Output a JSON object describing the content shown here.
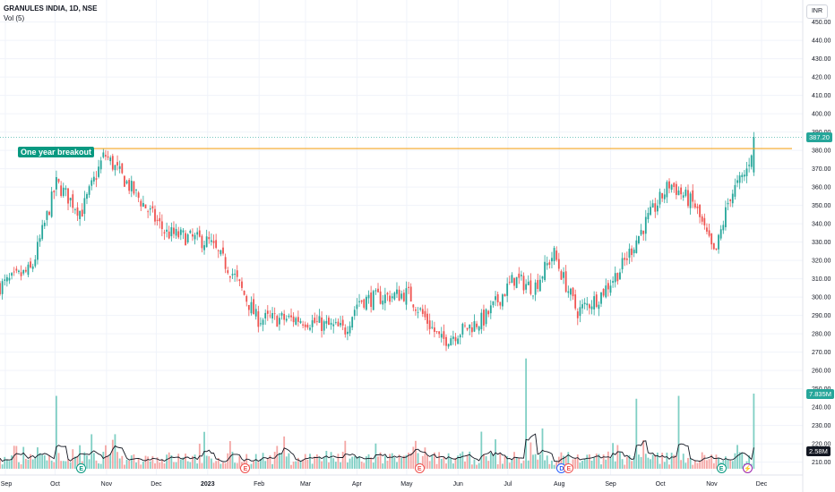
{
  "header": {
    "symbol_line": "GRANULES INDIA, 1D, NSE",
    "volume_label": "Vol (5)"
  },
  "currency": "INR",
  "colors": {
    "up": "#26a69a",
    "down": "#ef5350",
    "up_volume": "#7fcfc4",
    "down_volume": "#f4a6a4",
    "breakout_line": "#f5a623",
    "annotation": "#089981",
    "volume_ma": "#131722",
    "axis_text": "#131722",
    "grid": "#f0f3fa"
  },
  "price_tags": {
    "last_price": "387.20",
    "volume_last": "7.835M",
    "volume_ma": "2.58M"
  },
  "annotation": "One year breakout",
  "events": [
    {
      "label": "E",
      "kind": "earnings",
      "date": "Oct 2022"
    },
    {
      "label": "E",
      "kind": "earnings",
      "date": "Jan 2023"
    },
    {
      "label": "E",
      "kind": "earnings",
      "date": "May 2023"
    },
    {
      "label": "D",
      "kind": "dividend",
      "date": "Aug 2023"
    },
    {
      "label": "E",
      "kind": "earnings",
      "date": "Aug 2023"
    },
    {
      "label": "E",
      "kind": "earnings",
      "date": "Nov 2023"
    },
    {
      "label": "⚡",
      "kind": "split",
      "date": "Nov 2023"
    }
  ],
  "chart_data": {
    "type": "candlestick",
    "title": "GRANULES INDIA, 1D, NSE",
    "x_ticks": [
      "Sep",
      "Oct",
      "Nov",
      "Dec",
      "2023",
      "Feb",
      "Mar",
      "Apr",
      "May",
      "Jun",
      "Jul",
      "Aug",
      "Sep",
      "Oct",
      "Nov",
      "Dec"
    ],
    "y_ticks": [
      210,
      220,
      230,
      240,
      250,
      260,
      270,
      280,
      290,
      300,
      310,
      320,
      330,
      340,
      350,
      360,
      370,
      380,
      390,
      400,
      410,
      420,
      430,
      440,
      450
    ],
    "ylim": [
      203,
      462
    ],
    "breakout_level": 381,
    "last_close": 387.2,
    "grid": true,
    "price_path_anchors": [
      {
        "date": "2022-09-01",
        "close": 306
      },
      {
        "date": "2022-09-20",
        "close": 315
      },
      {
        "date": "2022-10-05",
        "close": 362
      },
      {
        "date": "2022-10-20",
        "close": 346
      },
      {
        "date": "2022-11-03",
        "close": 378
      },
      {
        "date": "2022-11-15",
        "close": 364
      },
      {
        "date": "2022-12-10",
        "close": 335
      },
      {
        "date": "2023-01-05",
        "close": 330
      },
      {
        "date": "2023-01-20",
        "close": 312
      },
      {
        "date": "2023-02-03",
        "close": 288
      },
      {
        "date": "2023-03-01",
        "close": 288
      },
      {
        "date": "2023-03-28",
        "close": 282
      },
      {
        "date": "2023-04-05",
        "close": 298
      },
      {
        "date": "2023-05-05",
        "close": 302
      },
      {
        "date": "2023-05-25",
        "close": 276
      },
      {
        "date": "2023-06-20",
        "close": 288
      },
      {
        "date": "2023-07-08",
        "close": 310
      },
      {
        "date": "2023-07-20",
        "close": 305
      },
      {
        "date": "2023-08-01",
        "close": 324
      },
      {
        "date": "2023-08-05",
        "close": 314
      },
      {
        "date": "2023-08-15",
        "close": 292
      },
      {
        "date": "2023-08-28",
        "close": 300
      },
      {
        "date": "2023-09-10",
        "close": 315
      },
      {
        "date": "2023-09-25",
        "close": 340
      },
      {
        "date": "2023-10-10",
        "close": 362
      },
      {
        "date": "2023-10-25",
        "close": 350
      },
      {
        "date": "2023-11-06",
        "close": 322
      },
      {
        "date": "2023-11-15",
        "close": 355
      },
      {
        "date": "2023-11-25",
        "close": 368
      },
      {
        "date": "2023-11-30",
        "close": 387.2
      }
    ],
    "volume": {
      "last_volume": "7.835M",
      "ma5": "2.58M",
      "spikes": [
        {
          "date": "2022-10-05",
          "volume_m": 7.6
        },
        {
          "date": "2022-11-10",
          "volume_m": 3.6
        },
        {
          "date": "2023-07-15",
          "volume_m": 11.5
        },
        {
          "date": "2023-07-25",
          "volume_m": 4.2
        },
        {
          "date": "2023-09-20",
          "volume_m": 7.3
        },
        {
          "date": "2023-10-15",
          "volume_m": 7.6
        },
        {
          "date": "2023-11-30",
          "volume_m": 7.835
        }
      ]
    }
  }
}
